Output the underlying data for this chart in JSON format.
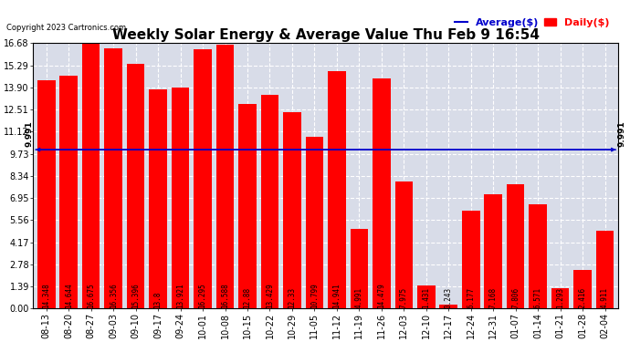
{
  "title": "Weekly Solar Energy & Average Value Thu Feb 9 16:54",
  "copyright": "Copyright 2023 Cartronics.com",
  "legend_average": "Average($)",
  "legend_daily": "Daily($)",
  "average_value": 9.991,
  "average_label": "9.991",
  "categories": [
    "08-13",
    "08-20",
    "08-27",
    "09-03",
    "09-10",
    "09-17",
    "09-24",
    "10-01",
    "10-08",
    "10-15",
    "10-22",
    "10-29",
    "11-05",
    "11-12",
    "11-19",
    "11-26",
    "12-03",
    "12-10",
    "12-17",
    "12-24",
    "12-31",
    "01-07",
    "01-14",
    "01-21",
    "01-28",
    "02-04"
  ],
  "values": [
    14.348,
    14.644,
    16.675,
    16.356,
    15.396,
    13.8,
    13.921,
    16.295,
    16.588,
    12.88,
    13.429,
    12.33,
    10.799,
    14.941,
    4.991,
    14.479,
    7.975,
    1.431,
    0.243,
    6.177,
    7.168,
    7.806,
    6.571,
    1.293,
    2.416,
    4.911
  ],
  "bar_color": "#ff0000",
  "average_line_color": "#0000cc",
  "plot_bg_color": "#d8dce8",
  "grid_color": "#ffffff",
  "yticks": [
    0.0,
    1.39,
    2.78,
    4.17,
    5.56,
    6.95,
    8.34,
    9.73,
    11.12,
    12.51,
    13.9,
    15.29,
    16.68
  ],
  "ymax": 16.68,
  "ymin": 0.0,
  "title_fontsize": 11,
  "tick_fontsize": 7,
  "bar_label_fontsize": 5.5,
  "avg_label_fontsize": 6.5,
  "legend_fontsize": 8,
  "fig_width": 6.9,
  "fig_height": 3.75,
  "dpi": 100
}
